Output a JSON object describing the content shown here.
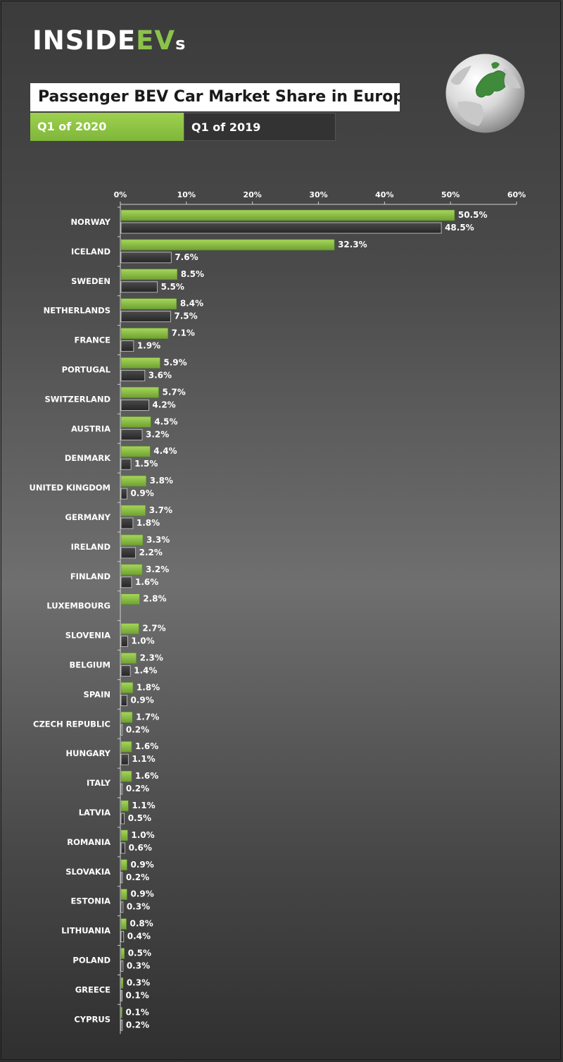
{
  "brand": {
    "logo_main": "INSIDE",
    "logo_accent": "EV",
    "logo_suffix": "s"
  },
  "title": "Passenger BEV Car Market Share in Europe",
  "legend": {
    "series_2020": "Q1 of 2020",
    "series_2019": "Q1 of 2019"
  },
  "colors": {
    "accent_2020": "#8bc34a",
    "bar_2019": "#3a3a3a",
    "background": "#555555"
  },
  "chart_data": {
    "type": "bar",
    "orientation": "horizontal",
    "title": "Passenger BEV Car Market Share in Europe",
    "xlim": [
      0,
      60
    ],
    "x_ticks": [
      "0%",
      "10%",
      "20%",
      "30%",
      "40%",
      "50%",
      "60%"
    ],
    "x_tick_values": [
      0,
      10,
      20,
      30,
      40,
      50,
      60
    ],
    "grid": false,
    "legend_position": "top-left",
    "categories": [
      "NORWAY",
      "ICELAND",
      "SWEDEN",
      "NETHERLANDS",
      "FRANCE",
      "PORTUGAL",
      "SWITZERLAND",
      "AUSTRIA",
      "DENMARK",
      "UNITED KINGDOM",
      "GERMANY",
      "IRELAND",
      "FINLAND",
      "LUXEMBOURG",
      "SLOVENIA",
      "BELGIUM",
      "SPAIN",
      "CZECH REPUBLIC",
      "HUNGARY",
      "ITALY",
      "LATVIA",
      "ROMANIA",
      "SLOVAKIA",
      "ESTONIA",
      "LITHUANIA",
      "POLAND",
      "GREECE",
      "CYPRUS"
    ],
    "series": [
      {
        "name": "Q1 of 2020",
        "color": "#8bc34a",
        "values": [
          50.5,
          32.3,
          8.5,
          8.4,
          7.1,
          5.9,
          5.7,
          4.5,
          4.4,
          3.8,
          3.7,
          3.3,
          3.2,
          2.8,
          2.7,
          2.3,
          1.8,
          1.7,
          1.6,
          1.6,
          1.1,
          1.0,
          0.9,
          0.9,
          0.8,
          0.5,
          0.3,
          0.1
        ],
        "labels": [
          "50.5%",
          "32.3%",
          "8.5%",
          "8.4%",
          "7.1%",
          "5.9%",
          "5.7%",
          "4.5%",
          "4.4%",
          "3.8%",
          "3.7%",
          "3.3%",
          "3.2%",
          "2.8%",
          "2.7%",
          "2.3%",
          "1.8%",
          "1.7%",
          "1.6%",
          "1.6%",
          "1.1%",
          "1.0%",
          "0.9%",
          "0.9%",
          "0.8%",
          "0.5%",
          "0.3%",
          "0.1%"
        ]
      },
      {
        "name": "Q1 of 2019",
        "color": "#3a3a3a",
        "values": [
          48.5,
          7.6,
          5.5,
          7.5,
          1.9,
          3.6,
          4.2,
          3.2,
          1.5,
          0.9,
          1.8,
          2.2,
          1.6,
          null,
          1.0,
          1.4,
          0.9,
          0.2,
          1.1,
          0.2,
          0.5,
          0.6,
          0.2,
          0.3,
          0.4,
          0.3,
          0.1,
          0.2
        ],
        "labels": [
          "48.5%",
          "7.6%",
          "5.5%",
          "7.5%",
          "1.9%",
          "3.6%",
          "4.2%",
          "3.2%",
          "1.5%",
          "0.9%",
          "1.8%",
          "2.2%",
          "1.6%",
          null,
          "1.0%",
          "1.4%",
          "0.9%",
          "0.2%",
          "1.1%",
          "0.2%",
          "0.5%",
          "0.6%",
          "0.2%",
          "0.3%",
          "0.4%",
          "0.3%",
          "0.1%",
          "0.2%"
        ]
      }
    ]
  }
}
